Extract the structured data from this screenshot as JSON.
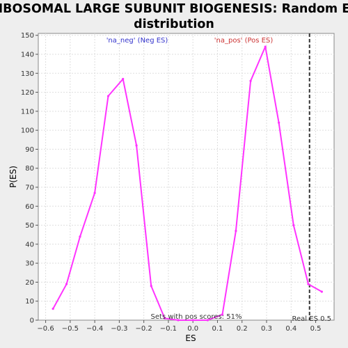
{
  "chart_data": {
    "type": "line",
    "title_line1": "RIBOSOMAL LARGE SUBUNIT BIOGENESIS: Random ES",
    "title_line2": "distribution",
    "xlabel": "ES",
    "ylabel": "P(ES)",
    "xlim": [
      -0.63,
      0.575
    ],
    "ylim": [
      0,
      151
    ],
    "xticks": [
      -0.6,
      -0.5,
      -0.4,
      -0.3,
      -0.2,
      -0.1,
      0.0,
      0.1,
      0.2,
      0.3,
      0.4,
      0.5
    ],
    "xtick_labels": [
      "−0.6",
      "−0.5",
      "−0.4",
      "−0.3",
      "−0.2",
      "−0.1",
      "0.0",
      "0.1",
      "0.2",
      "0.3",
      "0.4",
      "0.5"
    ],
    "yticks": [
      0,
      10,
      20,
      30,
      40,
      50,
      60,
      70,
      80,
      90,
      100,
      110,
      120,
      130,
      140,
      150
    ],
    "grid": true,
    "line_color": "#ff33ff",
    "series": [
      {
        "x": [
          -0.57,
          -0.515,
          -0.46,
          -0.4,
          -0.345,
          -0.285,
          -0.23,
          -0.17,
          -0.115,
          -0.06,
          0.0,
          0.06,
          0.12,
          0.175,
          0.235,
          0.295,
          0.35,
          0.41,
          0.47,
          0.525
        ],
        "y": [
          6,
          19,
          44,
          67,
          118,
          127,
          92,
          18,
          1,
          0,
          0,
          0,
          3,
          47,
          126,
          144,
          104,
          50,
          19,
          15
        ]
      }
    ],
    "real_es": 0.475,
    "real_es_color": "#333333",
    "annotations": {
      "neg_label": "'na_neg' (Neg ES)",
      "neg_color": "#3333cc",
      "pos_label": "'na_pos' (Pos ES)",
      "pos_color": "#cc3333",
      "sets_text": "Sets with pos scores: 51%",
      "real_es_text": "Real ES 0.5"
    }
  }
}
